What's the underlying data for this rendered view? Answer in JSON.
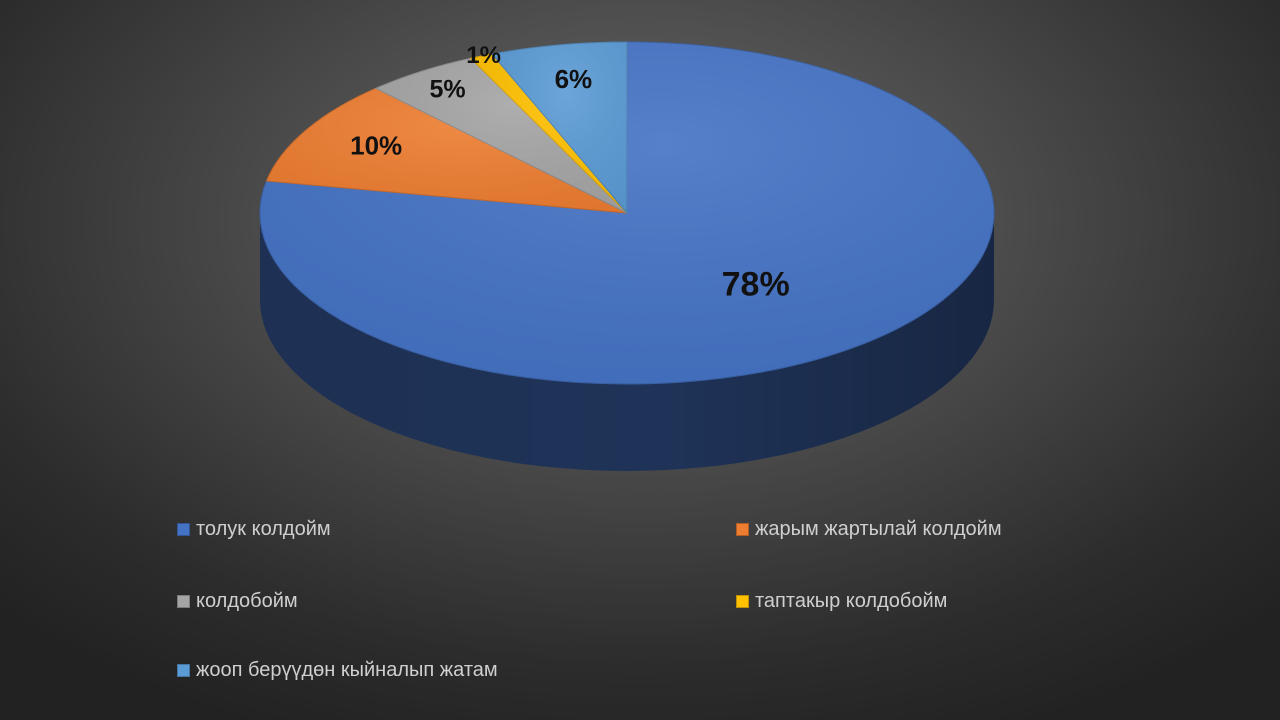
{
  "chart_data": {
    "type": "pie",
    "style": "3d",
    "legend_position": "bottom",
    "categories": [
      "толук колдойм",
      "жарым жартылай колдойм",
      "колдобойм",
      "таптакыр колдобойм",
      "жооп берүүдөн кыйналып жатам"
    ],
    "values": [
      78,
      10,
      5,
      1,
      6
    ],
    "data_labels": [
      "78%",
      "10%",
      "5%",
      "1%",
      "6%"
    ],
    "colors": [
      "#4472C4",
      "#ED7D31",
      "#A5A5A5",
      "#FFC000",
      "#5B9BD5"
    ]
  }
}
